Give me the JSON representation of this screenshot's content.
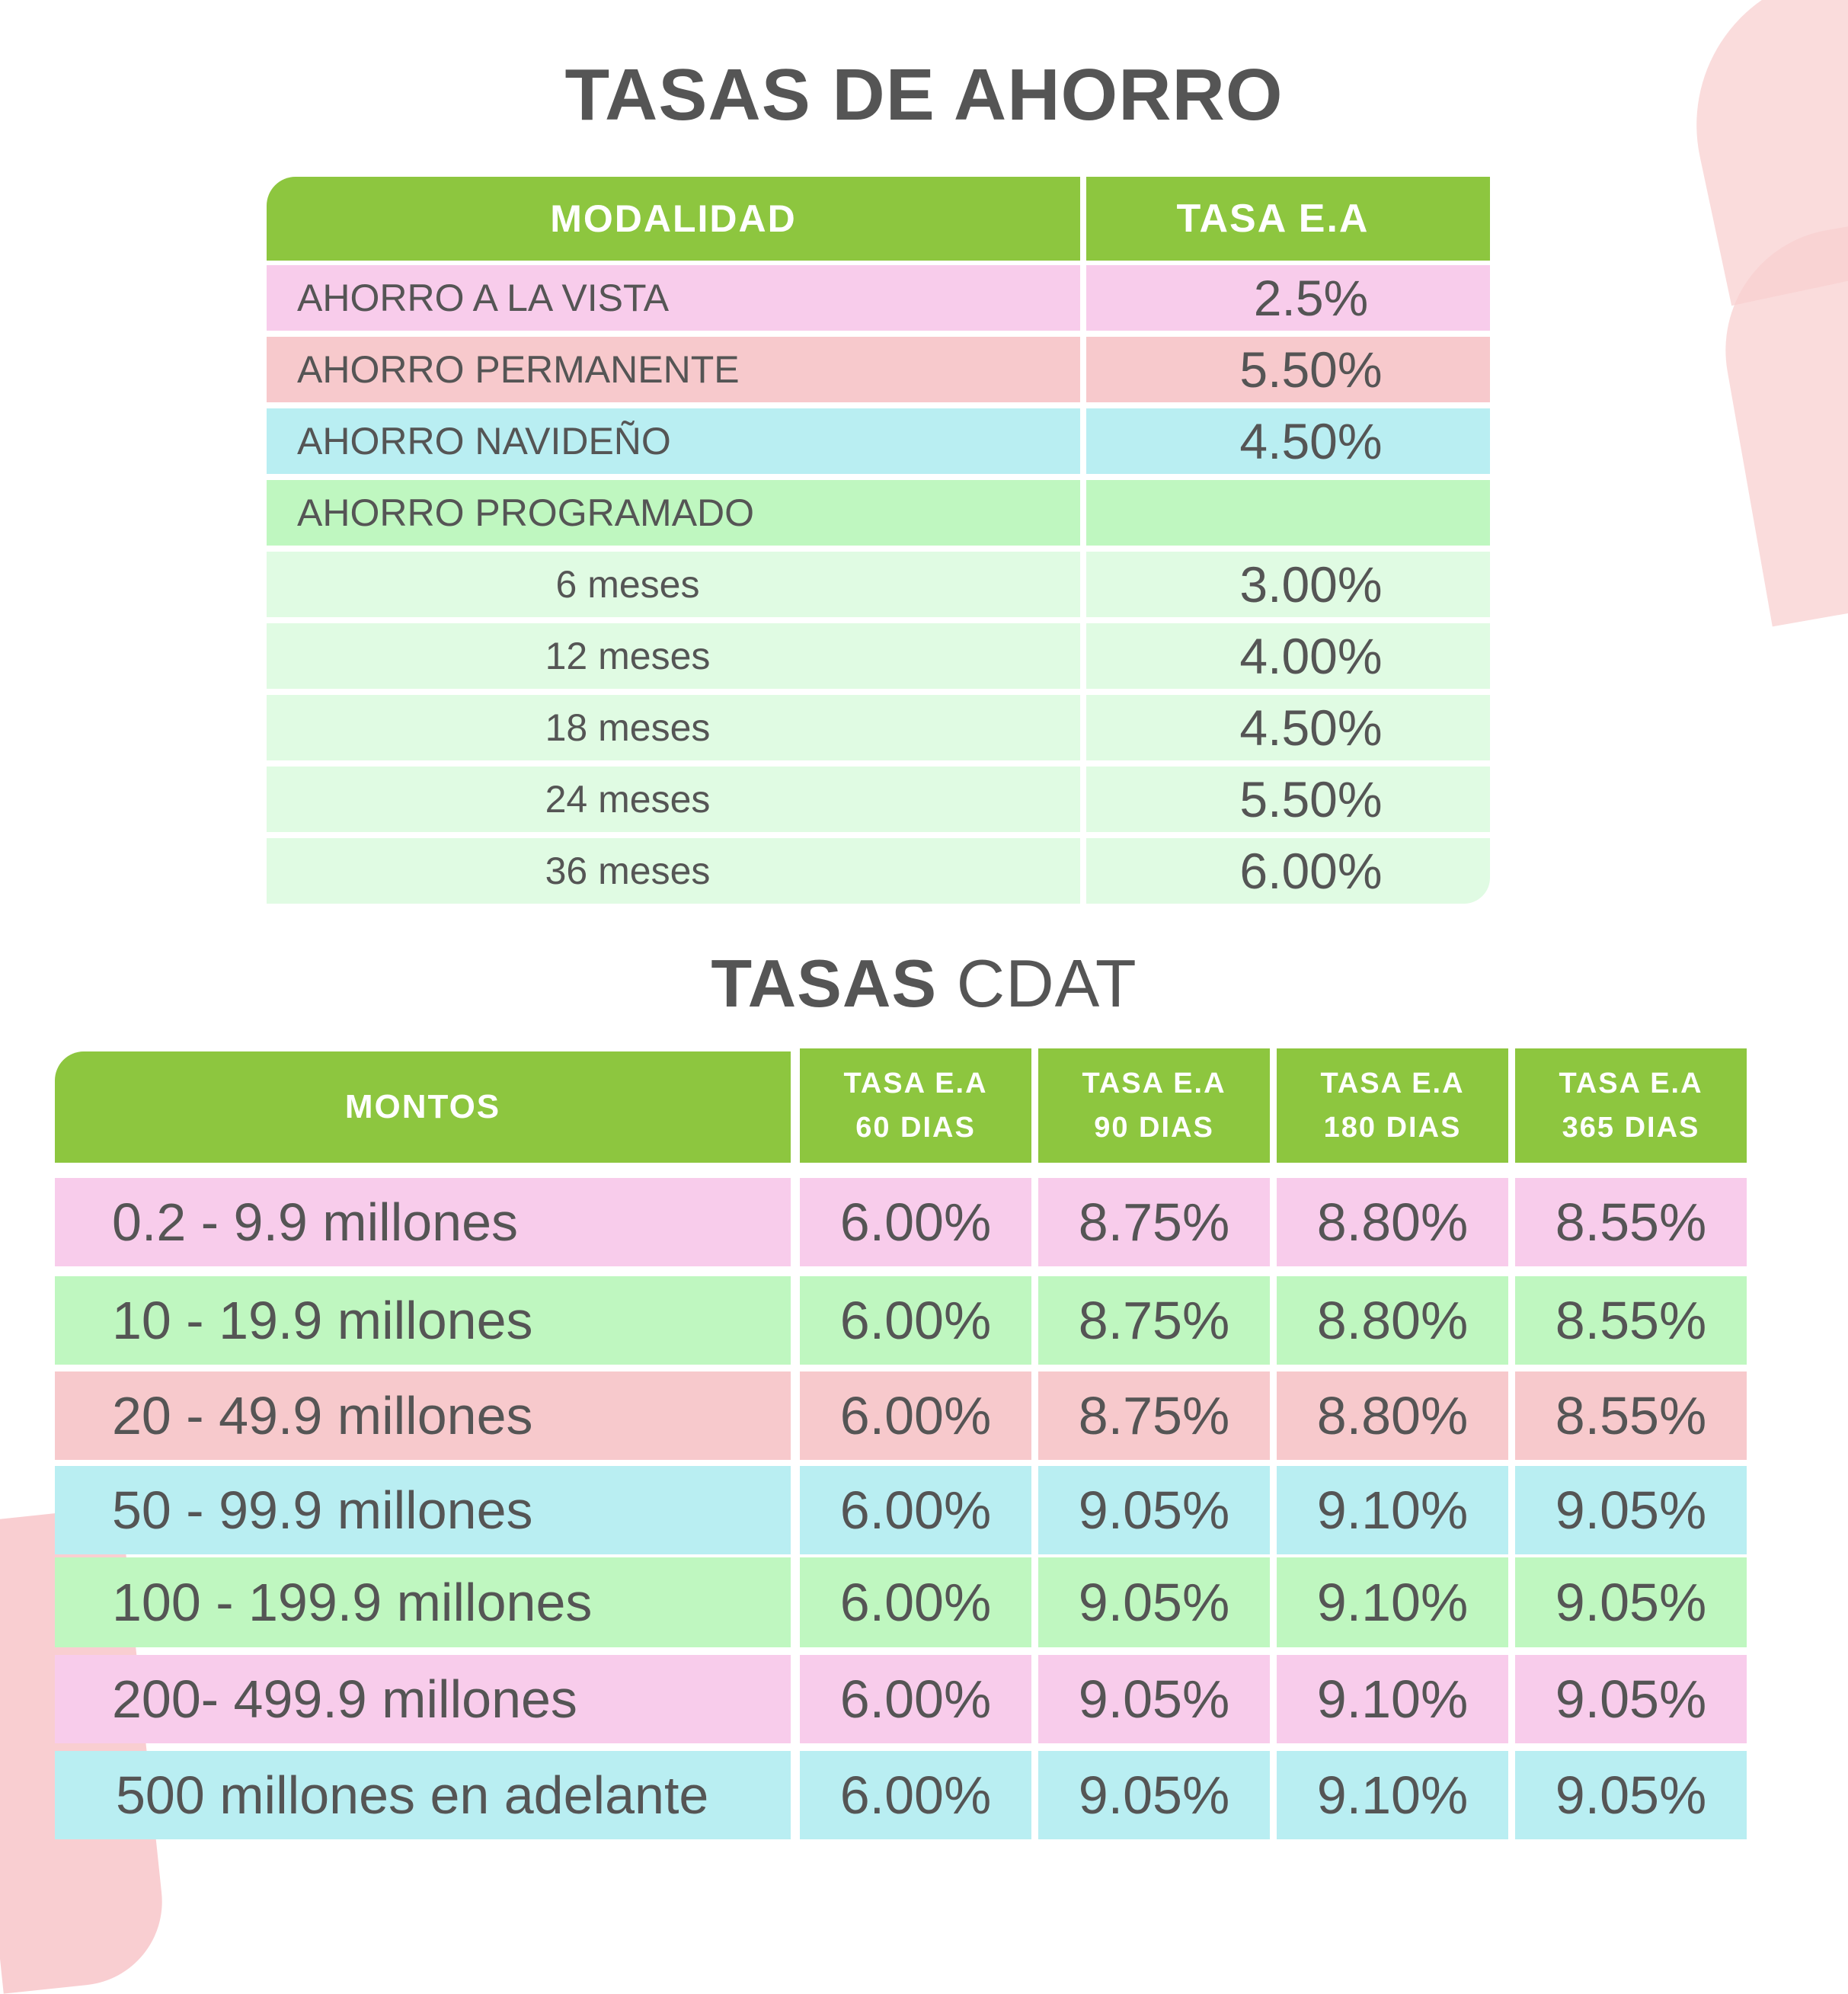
{
  "ahorro": {
    "title": "TASAS DE AHORRO",
    "headers": {
      "modalidad": "MODALIDAD",
      "tasa": "TASA E.A"
    },
    "rows": [
      {
        "label": "AHORRO A LA VISTA",
        "rate": "2.5%",
        "color": "#f8cceb"
      },
      {
        "label": "AHORRO PERMANENTE",
        "rate": "5.50%",
        "color": "#f7c9cc"
      },
      {
        "label": "AHORRO NAVIDEÑO",
        "rate": "4.50%",
        "color": "#b9eef2"
      },
      {
        "label": "AHORRO PROGRAMADO",
        "rate": "",
        "color": "#bff7c0"
      }
    ],
    "programado": [
      {
        "term": "6 meses",
        "rate": "3.00%"
      },
      {
        "term": "12 meses",
        "rate": "4.00%"
      },
      {
        "term": "18 meses",
        "rate": "4.50%"
      },
      {
        "term": "24 meses",
        "rate": "5.50%"
      },
      {
        "term": "36 meses",
        "rate": "6.00%"
      }
    ]
  },
  "cdat": {
    "title_strong": "TASAS",
    "title_light": "CDAT",
    "headers": {
      "montos": "MONTOS",
      "tasa_label": "TASA E.A",
      "periods": [
        "60 DIAS",
        "90 DIAS",
        "180 DIAS",
        "365 DIAS"
      ]
    },
    "rows": [
      {
        "range": "0.2 - 9.9 millones",
        "rates": [
          "6.00%",
          "8.75%",
          "8.80%",
          "8.55%"
        ]
      },
      {
        "range": "10 - 19.9 millones",
        "rates": [
          "6.00%",
          "8.75%",
          "8.80%",
          "8.55%"
        ]
      },
      {
        "range": "20 - 49.9 millones",
        "rates": [
          "6.00%",
          "8.75%",
          "8.80%",
          "8.55%"
        ]
      },
      {
        "range": "50 - 99.9 millones",
        "rates": [
          "6.00%",
          "9.05%",
          "9.10%",
          "9.05%"
        ]
      },
      {
        "range": "100 - 199.9 millones",
        "rates": [
          "6.00%",
          "9.05%",
          "9.10%",
          "9.05%"
        ]
      },
      {
        "range": "200- 499.9 millones",
        "rates": [
          "6.00%",
          "9.05%",
          "9.10%",
          "9.05%"
        ]
      },
      {
        "range": "500 millones en adelante",
        "rates": [
          "6.00%",
          "9.05%",
          "9.10%",
          "9.05%"
        ]
      }
    ]
  },
  "colors": {
    "header_green": "#8dc63f",
    "pink": "#f8cceb",
    "rose": "#f7c9cc",
    "cyan": "#b9eef2",
    "green": "#bff7c0",
    "pale_green": "#e0fbe3",
    "text": "#555555"
  }
}
